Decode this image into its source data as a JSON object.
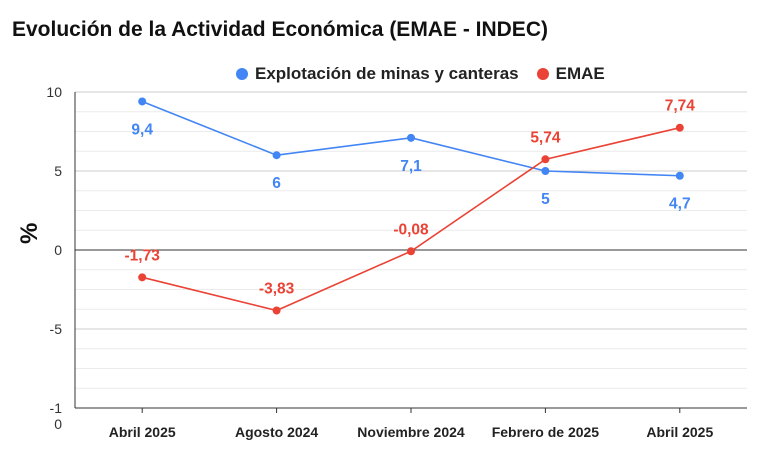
{
  "chart_data": {
    "type": "line",
    "title": "Evolución de la Actividad Económica (EMAE - INDEC)",
    "ylabel": "%",
    "xlabel": "",
    "categories": [
      "Abril 2025",
      "Agosto 2024",
      "Noviembre 2024",
      "Febrero de 2025",
      "Abril 2025"
    ],
    "ylim": [
      -10,
      10
    ],
    "yticks": [
      {
        "value": 10,
        "label": "10"
      },
      {
        "value": 5,
        "label": "5"
      },
      {
        "value": 0,
        "label": "0"
      },
      {
        "value": -5,
        "label": "-5"
      },
      {
        "value": -10,
        "label": "-1\n0"
      }
    ],
    "grid": true,
    "legend_position": "top",
    "series": [
      {
        "name": "Explotación de minas y canteras",
        "color": "#4285f4",
        "values": [
          9.4,
          6,
          7.1,
          5,
          4.7
        ],
        "labels": [
          "9,4",
          "6",
          "7,1",
          "5",
          "4,7"
        ]
      },
      {
        "name": "EMAE",
        "color": "#ea4335",
        "values": [
          -1.73,
          -3.83,
          -0.08,
          5.74,
          7.74
        ],
        "labels": [
          "-1,73",
          "-3,83",
          "-0,08",
          "5,74",
          "7,74"
        ]
      }
    ]
  }
}
